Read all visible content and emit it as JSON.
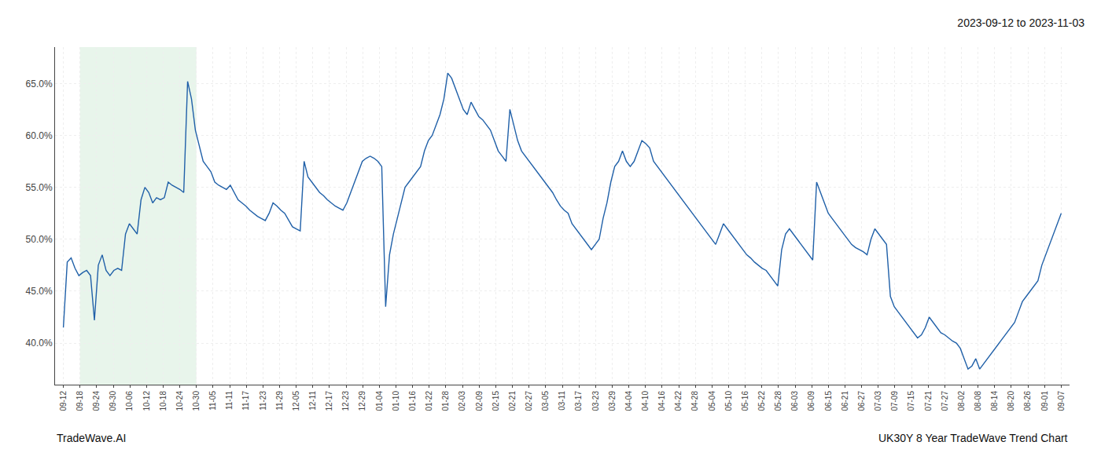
{
  "chart_data": {
    "type": "line",
    "title": "2023-09-12 to 2023-11-03",
    "annotations": [
      "TradeWave.AI",
      "UK30Y 8 Year TradeWave Trend Chart"
    ],
    "color": "#2060a8",
    "grid": true,
    "shaded_region": {
      "from": "09-18",
      "to": "10-30",
      "color": "#d8eedd"
    },
    "ylim": [
      36.0,
      68.5
    ],
    "yticks": [
      {
        "value": 40.0,
        "label": "40.0%"
      },
      {
        "value": 45.0,
        "label": "45.0%"
      },
      {
        "value": 50.0,
        "label": "50.0%"
      },
      {
        "value": 55.0,
        "label": "55.0%"
      },
      {
        "value": 60.0,
        "label": "60.0%"
      },
      {
        "value": 65.0,
        "label": "65.0%"
      }
    ],
    "xlim": [
      -0.5,
      60.5
    ],
    "xticks": [
      {
        "value": 0,
        "label": "09-12"
      },
      {
        "value": 1,
        "label": "09-18"
      },
      {
        "value": 2,
        "label": "09-24"
      },
      {
        "value": 3,
        "label": "09-30"
      },
      {
        "value": 4,
        "label": "10-06"
      },
      {
        "value": 5,
        "label": "10-12"
      },
      {
        "value": 6,
        "label": "10-18"
      },
      {
        "value": 7,
        "label": "10-24"
      },
      {
        "value": 8,
        "label": "10-30"
      },
      {
        "value": 9,
        "label": "11-05"
      },
      {
        "value": 10,
        "label": "11-11"
      },
      {
        "value": 11,
        "label": "11-17"
      },
      {
        "value": 12,
        "label": "11-23"
      },
      {
        "value": 13,
        "label": "11-29"
      },
      {
        "value": 14,
        "label": "12-05"
      },
      {
        "value": 15,
        "label": "12-11"
      },
      {
        "value": 16,
        "label": "12-17"
      },
      {
        "value": 17,
        "label": "12-23"
      },
      {
        "value": 18,
        "label": "12-29"
      },
      {
        "value": 19,
        "label": "01-04"
      },
      {
        "value": 20,
        "label": "01-10"
      },
      {
        "value": 21,
        "label": "01-16"
      },
      {
        "value": 22,
        "label": "01-22"
      },
      {
        "value": 23,
        "label": "01-28"
      },
      {
        "value": 24,
        "label": "02-03"
      },
      {
        "value": 25,
        "label": "02-09"
      },
      {
        "value": 26,
        "label": "02-15"
      },
      {
        "value": 27,
        "label": "02-21"
      },
      {
        "value": 28,
        "label": "02-27"
      },
      {
        "value": 29,
        "label": "03-05"
      },
      {
        "value": 30,
        "label": "03-11"
      },
      {
        "value": 31,
        "label": "03-17"
      },
      {
        "value": 32,
        "label": "03-23"
      },
      {
        "value": 33,
        "label": "03-29"
      },
      {
        "value": 34,
        "label": "04-04"
      },
      {
        "value": 35,
        "label": "04-10"
      },
      {
        "value": 36,
        "label": "04-16"
      },
      {
        "value": 37,
        "label": "04-22"
      },
      {
        "value": 38,
        "label": "04-28"
      },
      {
        "value": 39,
        "label": "05-04"
      },
      {
        "value": 40,
        "label": "05-10"
      },
      {
        "value": 41,
        "label": "05-16"
      },
      {
        "value": 42,
        "label": "05-22"
      },
      {
        "value": 43,
        "label": "05-28"
      },
      {
        "value": 44,
        "label": "06-03"
      },
      {
        "value": 45,
        "label": "06-09"
      },
      {
        "value": 46,
        "label": "06-15"
      },
      {
        "value": 47,
        "label": "06-21"
      },
      {
        "value": 48,
        "label": "06-27"
      },
      {
        "value": 49,
        "label": "07-03"
      },
      {
        "value": 50,
        "label": "07-09"
      },
      {
        "value": 51,
        "label": "07-15"
      },
      {
        "value": 52,
        "label": "07-21"
      },
      {
        "value": 53,
        "label": "07-27"
      },
      {
        "value": 54,
        "label": "08-02"
      },
      {
        "value": 55,
        "label": "08-08"
      },
      {
        "value": 56,
        "label": "08-14"
      },
      {
        "value": 57,
        "label": "08-20"
      },
      {
        "value": 58,
        "label": "08-26"
      },
      {
        "value": 59,
        "label": "09-01"
      },
      {
        "value": 60,
        "label": "09-07"
      }
    ],
    "values": [
      41.5,
      47.8,
      48.2,
      47.2,
      46.5,
      46.8,
      47.0,
      46.5,
      42.2,
      47.5,
      48.5,
      47.0,
      46.5,
      47.0,
      47.2,
      47.0,
      50.5,
      51.5,
      51.0,
      50.5,
      53.8,
      55.0,
      54.5,
      53.5,
      54.0,
      53.8,
      54.0,
      55.5,
      55.2,
      55.0,
      54.8,
      54.5,
      65.2,
      63.5,
      60.5,
      59.0,
      57.5,
      57.0,
      56.5,
      55.5,
      55.2,
      55.0,
      54.8,
      55.2,
      54.5,
      53.8,
      53.5,
      53.2,
      52.8,
      52.5,
      52.2,
      52.0,
      51.8,
      52.5,
      53.5,
      53.2,
      52.8,
      52.5,
      51.8,
      51.2,
      51.0,
      50.8,
      57.5,
      56.0,
      55.5,
      55.0,
      54.5,
      54.2,
      53.8,
      53.5,
      53.2,
      53.0,
      52.8,
      53.5,
      54.5,
      55.5,
      56.5,
      57.5,
      57.8,
      58.0,
      57.8,
      57.5,
      57.0,
      43.5,
      48.5,
      50.5,
      52.0,
      53.5,
      55.0,
      55.5,
      56.0,
      56.5,
      57.0,
      58.5,
      59.5,
      60.0,
      61.0,
      62.0,
      63.5,
      66.0,
      65.5,
      64.5,
      63.5,
      62.5,
      62.0,
      63.2,
      62.5,
      61.8,
      61.5,
      61.0,
      60.5,
      59.5,
      58.5,
      58.0,
      57.5,
      62.5,
      61.0,
      59.5,
      58.5,
      58.0,
      57.5,
      57.0,
      56.5,
      56.0,
      55.5,
      55.0,
      54.5,
      53.8,
      53.2,
      52.8,
      52.5,
      51.5,
      51.0,
      50.5,
      50.0,
      49.5,
      49.0,
      49.5,
      50.0,
      52.0,
      53.5,
      55.5,
      57.0,
      57.5,
      58.5,
      57.5,
      57.0,
      57.5,
      58.5,
      59.5,
      59.2,
      58.8,
      57.5,
      57.0,
      56.5,
      56.0,
      55.5,
      55.0,
      54.5,
      54.0,
      53.5,
      53.0,
      52.5,
      52.0,
      51.5,
      51.0,
      50.5,
      50.0,
      49.5,
      50.5,
      51.5,
      51.0,
      50.5,
      50.0,
      49.5,
      49.0,
      48.5,
      48.2,
      47.8,
      47.5,
      47.2,
      47.0,
      46.5,
      46.0,
      45.5,
      49.0,
      50.5,
      51.0,
      50.5,
      50.0,
      49.5,
      49.0,
      48.5,
      48.0,
      55.5,
      54.5,
      53.5,
      52.5,
      52.0,
      51.5,
      51.0,
      50.5,
      50.0,
      49.5,
      49.2,
      49.0,
      48.8,
      48.5,
      50.0,
      51.0,
      50.5,
      50.0,
      49.5,
      44.5,
      43.5,
      43.0,
      42.5,
      42.0,
      41.5,
      41.0,
      40.5,
      40.8,
      41.5,
      42.5,
      42.0,
      41.5,
      41.0,
      40.8,
      40.5,
      40.2,
      40.0,
      39.5,
      38.5,
      37.5,
      37.8,
      38.5,
      37.5,
      38.0,
      38.5,
      39.0,
      39.5,
      40.0,
      40.5,
      41.0,
      41.5,
      42.0,
      43.0,
      44.0,
      44.5,
      45.0,
      45.5,
      46.0,
      47.5,
      48.5,
      49.5,
      50.5,
      51.5,
      52.5
    ]
  }
}
